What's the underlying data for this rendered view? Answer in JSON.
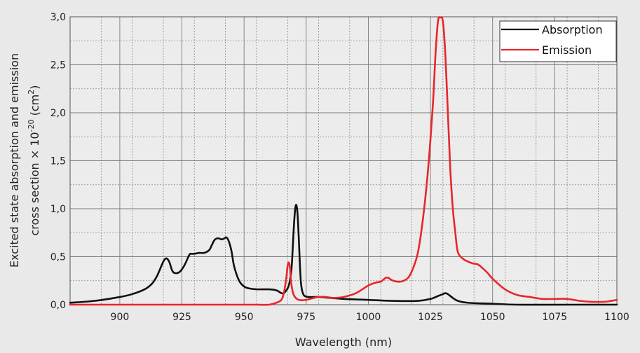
{
  "chart_data": {
    "type": "line",
    "xlabel": "Wavelength (nm)",
    "ylabel_line1": "Excited state absorption and emission",
    "ylabel_line2_prefix": "cross section × 10",
    "ylabel_line2_exp": "-20",
    "ylabel_line2_mid": " (cm",
    "ylabel_line2_exp2": "2",
    "ylabel_line2_suffix": ")",
    "xlim": [
      880,
      1100
    ],
    "ylim": [
      0,
      3.0
    ],
    "x_ticks": [
      900,
      925,
      950,
      975,
      1000,
      1025,
      1050,
      1075,
      1100
    ],
    "x_tick_labels": [
      "900",
      "925",
      "950",
      "975",
      "1000",
      "1025",
      "1050",
      "1075",
      "1100"
    ],
    "y_ticks": [
      0,
      0.5,
      1.0,
      1.5,
      2.0,
      2.5,
      3.0
    ],
    "y_tick_labels": [
      "0,0",
      "0,5",
      "1,0",
      "1,5",
      "2,0",
      "2,5",
      "3,0"
    ],
    "grid": true,
    "legend_position": "top-right",
    "series": [
      {
        "name": "Absorption",
        "color": "#111111",
        "x": [
          880,
          890,
          900,
          905,
          910,
          913,
          915,
          917,
          918,
          919,
          920,
          921,
          922,
          924,
          926,
          928,
          929,
          930,
          932,
          934,
          936,
          937,
          938,
          939,
          940,
          941,
          942,
          943,
          944,
          945,
          946,
          948,
          950,
          952,
          955,
          960,
          963,
          965,
          966,
          967,
          968,
          969,
          969.5,
          970,
          970.5,
          971,
          971.5,
          972,
          972.5,
          973,
          974,
          976,
          978,
          980,
          985,
          990,
          1000,
          1010,
          1020,
          1025,
          1028,
          1030,
          1031,
          1032,
          1034,
          1036,
          1040,
          1050,
          1060,
          1080,
          1100
        ],
        "y": [
          0.02,
          0.04,
          0.08,
          0.11,
          0.16,
          0.22,
          0.3,
          0.42,
          0.47,
          0.48,
          0.44,
          0.36,
          0.33,
          0.34,
          0.41,
          0.52,
          0.53,
          0.53,
          0.54,
          0.54,
          0.57,
          0.62,
          0.67,
          0.69,
          0.69,
          0.68,
          0.69,
          0.7,
          0.65,
          0.55,
          0.4,
          0.25,
          0.19,
          0.17,
          0.16,
          0.16,
          0.15,
          0.12,
          0.12,
          0.15,
          0.2,
          0.35,
          0.55,
          0.8,
          0.98,
          1.04,
          0.95,
          0.7,
          0.4,
          0.2,
          0.1,
          0.08,
          0.08,
          0.08,
          0.07,
          0.06,
          0.05,
          0.04,
          0.04,
          0.06,
          0.09,
          0.11,
          0.12,
          0.11,
          0.07,
          0.04,
          0.02,
          0.01,
          0.0,
          0.0,
          0.0
        ]
      },
      {
        "name": "Emission",
        "color": "#e8262a",
        "x": [
          880,
          940,
          955,
          960,
          963,
          965,
          966,
          967,
          967.5,
          968,
          968.5,
          969,
          970,
          972,
          975,
          978,
          980,
          983,
          986,
          990,
          995,
          1000,
          1003,
          1005,
          1006,
          1007,
          1008,
          1010,
          1013,
          1016,
          1018,
          1020,
          1022,
          1024,
          1026,
          1027,
          1028,
          1029,
          1030,
          1031,
          1032,
          1033,
          1034,
          1035,
          1036,
          1038,
          1040,
          1042,
          1044,
          1046,
          1048,
          1050,
          1055,
          1060,
          1065,
          1070,
          1075,
          1080,
          1085,
          1090,
          1095,
          1100
        ],
        "y": [
          0.0,
          0.0,
          0.0,
          0.0,
          0.02,
          0.05,
          0.12,
          0.28,
          0.4,
          0.44,
          0.38,
          0.22,
          0.1,
          0.05,
          0.05,
          0.07,
          0.08,
          0.08,
          0.07,
          0.08,
          0.12,
          0.2,
          0.23,
          0.24,
          0.26,
          0.28,
          0.28,
          0.25,
          0.24,
          0.28,
          0.38,
          0.55,
          0.9,
          1.4,
          2.1,
          2.6,
          2.95,
          3.02,
          2.95,
          2.6,
          2.0,
          1.4,
          1.0,
          0.75,
          0.55,
          0.48,
          0.45,
          0.43,
          0.42,
          0.38,
          0.33,
          0.27,
          0.16,
          0.1,
          0.08,
          0.06,
          0.06,
          0.06,
          0.04,
          0.03,
          0.03,
          0.05
        ]
      }
    ]
  }
}
